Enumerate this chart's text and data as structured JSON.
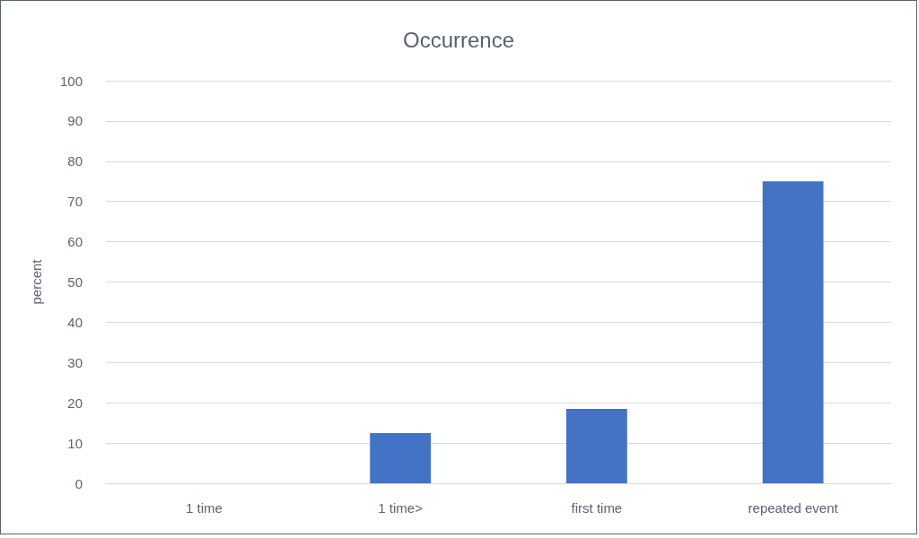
{
  "chart_data": {
    "type": "bar",
    "title": "Occurrence",
    "ylabel": "percent",
    "categories": [
      "1 time",
      "1 time>",
      "first time",
      "repeated event"
    ],
    "values": [
      0,
      12.5,
      18.5,
      75
    ],
    "color": "#4472c4",
    "ylim": [
      0,
      100
    ],
    "yticks": [
      0,
      10,
      20,
      30,
      40,
      50,
      60,
      70,
      80,
      90,
      100
    ],
    "grid": "y"
  }
}
